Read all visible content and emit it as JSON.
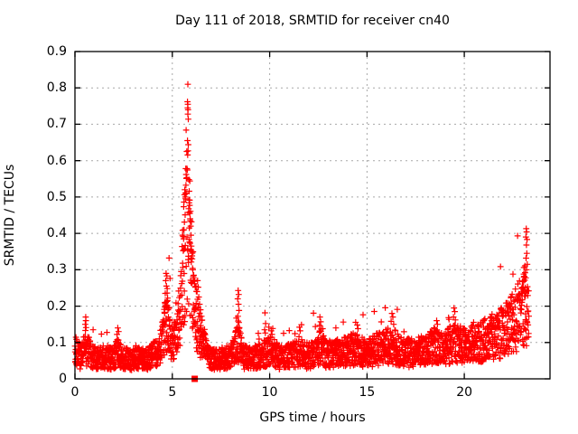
{
  "chart_data": {
    "type": "scatter",
    "title": "Day 111 of 2018, SRMTID for receiver cn40",
    "xlabel": "GPS time / hours",
    "ylabel": "SRMTID / TECUs",
    "xlim": [
      0,
      24.4
    ],
    "ylim": [
      0,
      0.9
    ],
    "xticks": [
      "0",
      "5",
      "10",
      "15",
      "20"
    ],
    "xtick_values": [
      0,
      5,
      10,
      15,
      20
    ],
    "yticks": [
      "0",
      "0.1",
      "0.2",
      "0.3",
      "0.4",
      "0.5",
      "0.6",
      "0.7",
      "0.8",
      "0.9"
    ],
    "ytick_values": [
      0,
      0.1,
      0.2,
      0.3,
      0.4,
      0.5,
      0.6,
      0.7,
      0.8,
      0.9
    ],
    "grid": true,
    "legend": "none",
    "marker": "plus",
    "marker_color": "#ff0000",
    "grid_color": "#a8a8a8",
    "border_color": "#000000",
    "background_color": "#ffffff",
    "text_color": "#000000",
    "series_sampling": {
      "t_start": 0.0,
      "t_end": 23.32,
      "dt": 0.008333,
      "seed": 1234567,
      "noise_min_factor": 0.42,
      "noise_span_factor": 1.05,
      "outlier_prob": 0.035,
      "outlier_min": 1.25,
      "outlier_span": 0.55,
      "y_floor": 0.01,
      "y_cap": 0.86
    },
    "baseline_envelope": [
      [
        0,
        0.085
      ],
      [
        0.25,
        0.062
      ],
      [
        0.5,
        0.085
      ],
      [
        0.65,
        0.08
      ],
      [
        0.9,
        0.062
      ],
      [
        1.2,
        0.058
      ],
      [
        1.6,
        0.065
      ],
      [
        1.9,
        0.06
      ],
      [
        2.2,
        0.075
      ],
      [
        2.5,
        0.06
      ],
      [
        2.9,
        0.055
      ],
      [
        3.3,
        0.06
      ],
      [
        3.7,
        0.058
      ],
      [
        4.0,
        0.068
      ],
      [
        4.3,
        0.08
      ],
      [
        4.55,
        0.12
      ],
      [
        4.7,
        0.17
      ],
      [
        4.85,
        0.13
      ],
      [
        5.0,
        0.1
      ],
      [
        5.2,
        0.11
      ],
      [
        5.45,
        0.22
      ],
      [
        5.6,
        0.34
      ],
      [
        5.75,
        0.44
      ],
      [
        5.85,
        0.42
      ],
      [
        6.0,
        0.28
      ],
      [
        6.15,
        0.19
      ],
      [
        6.35,
        0.14
      ],
      [
        6.6,
        0.1
      ],
      [
        6.9,
        0.072
      ],
      [
        7.2,
        0.055
      ],
      [
        7.6,
        0.06
      ],
      [
        8.0,
        0.065
      ],
      [
        8.4,
        0.11
      ],
      [
        8.6,
        0.065
      ],
      [
        9.0,
        0.06
      ],
      [
        9.4,
        0.065
      ],
      [
        9.75,
        0.075
      ],
      [
        10.1,
        0.08
      ],
      [
        10.5,
        0.062
      ],
      [
        10.9,
        0.065
      ],
      [
        11.2,
        0.07
      ],
      [
        11.55,
        0.082
      ],
      [
        11.9,
        0.065
      ],
      [
        12.2,
        0.07
      ],
      [
        12.6,
        0.095
      ],
      [
        12.9,
        0.07
      ],
      [
        13.2,
        0.075
      ],
      [
        13.6,
        0.08
      ],
      [
        14.0,
        0.08
      ],
      [
        14.5,
        0.09
      ],
      [
        14.8,
        0.075
      ],
      [
        15.1,
        0.075
      ],
      [
        15.5,
        0.085
      ],
      [
        15.9,
        0.09
      ],
      [
        16.2,
        0.1
      ],
      [
        16.5,
        0.09
      ],
      [
        16.8,
        0.075
      ],
      [
        17.2,
        0.075
      ],
      [
        17.6,
        0.08
      ],
      [
        18.0,
        0.085
      ],
      [
        18.5,
        0.1
      ],
      [
        18.9,
        0.085
      ],
      [
        19.3,
        0.1
      ],
      [
        19.6,
        0.105
      ],
      [
        20.0,
        0.098
      ],
      [
        20.4,
        0.1
      ],
      [
        20.8,
        0.108
      ],
      [
        21.2,
        0.115
      ],
      [
        21.6,
        0.125
      ],
      [
        22.0,
        0.135
      ],
      [
        22.4,
        0.155
      ],
      [
        22.7,
        0.175
      ],
      [
        22.95,
        0.195
      ],
      [
        23.1,
        0.215
      ],
      [
        23.3,
        0.2
      ]
    ],
    "peak_points": [
      [
        5.8,
        0.81
      ],
      [
        5.78,
        0.762
      ],
      [
        5.8,
        0.755
      ],
      [
        5.79,
        0.745
      ],
      [
        5.81,
        0.74
      ],
      [
        5.8,
        0.728
      ],
      [
        5.82,
        0.714
      ],
      [
        5.71,
        0.684
      ],
      [
        5.78,
        0.655
      ],
      [
        5.82,
        0.644
      ],
      [
        5.75,
        0.578
      ],
      [
        5.71,
        0.562
      ],
      [
        5.85,
        0.548
      ],
      [
        5.64,
        0.52
      ],
      [
        5.67,
        0.5
      ],
      [
        5.86,
        0.492
      ],
      [
        5.87,
        0.484
      ],
      [
        5.89,
        0.477
      ],
      [
        5.84,
        0.468
      ],
      [
        5.9,
        0.455
      ],
      [
        5.66,
        0.451
      ],
      [
        5.92,
        0.44
      ],
      [
        5.62,
        0.431
      ],
      [
        5.94,
        0.42
      ],
      [
        5.6,
        0.41
      ],
      [
        5.96,
        0.395
      ],
      [
        5.58,
        0.385
      ],
      [
        5.98,
        0.365
      ],
      [
        5.56,
        0.352
      ],
      [
        6.02,
        0.33
      ],
      [
        5.53,
        0.318
      ],
      [
        6.06,
        0.3
      ],
      [
        6.1,
        0.285
      ],
      [
        6.14,
        0.268
      ],
      [
        6.18,
        0.252
      ],
      [
        4.68,
        0.29
      ],
      [
        4.72,
        0.283
      ],
      [
        4.66,
        0.27
      ],
      [
        4.7,
        0.255
      ],
      [
        4.74,
        0.248
      ],
      [
        4.64,
        0.235
      ],
      [
        4.76,
        0.222
      ],
      [
        4.62,
        0.21
      ],
      [
        4.71,
        0.2
      ],
      [
        4.78,
        0.19
      ],
      [
        4.6,
        0.183
      ],
      [
        4.8,
        0.17
      ],
      [
        6.3,
        0.27
      ],
      [
        6.33,
        0.252
      ],
      [
        6.27,
        0.24
      ],
      [
        6.36,
        0.225
      ],
      [
        6.4,
        0.205
      ],
      [
        6.45,
        0.19
      ],
      [
        6.5,
        0.172
      ],
      [
        0.55,
        0.17
      ],
      [
        0.56,
        0.16
      ],
      [
        0.53,
        0.15
      ],
      [
        0.57,
        0.141
      ],
      [
        0.54,
        0.133
      ],
      [
        2.2,
        0.14
      ],
      [
        2.24,
        0.13
      ],
      [
        2.16,
        0.122
      ],
      [
        8.38,
        0.243
      ],
      [
        8.41,
        0.232
      ],
      [
        8.36,
        0.22
      ],
      [
        8.4,
        0.205
      ],
      [
        8.43,
        0.188
      ],
      [
        8.37,
        0.172
      ],
      [
        8.42,
        0.155
      ],
      [
        8.35,
        0.142
      ],
      [
        9.74,
        0.135
      ],
      [
        9.78,
        0.126
      ],
      [
        10.08,
        0.132
      ],
      [
        10.12,
        0.122
      ],
      [
        11.53,
        0.142
      ],
      [
        11.57,
        0.132
      ],
      [
        12.58,
        0.17
      ],
      [
        12.62,
        0.157
      ],
      [
        12.56,
        0.147
      ],
      [
        12.64,
        0.137
      ],
      [
        13.4,
        0.14
      ],
      [
        14.5,
        0.148
      ],
      [
        14.54,
        0.138
      ],
      [
        16.28,
        0.18
      ],
      [
        16.33,
        0.17
      ],
      [
        16.24,
        0.158
      ],
      [
        16.37,
        0.15
      ],
      [
        18.58,
        0.16
      ],
      [
        18.62,
        0.15
      ],
      [
        19.47,
        0.195
      ],
      [
        19.51,
        0.185
      ],
      [
        19.44,
        0.17
      ],
      [
        19.54,
        0.162
      ],
      [
        21.0,
        0.16
      ],
      [
        21.9,
        0.195
      ],
      [
        21.93,
        0.182
      ],
      [
        23.18,
        0.413
      ],
      [
        23.2,
        0.404
      ],
      [
        23.16,
        0.39
      ],
      [
        23.22,
        0.383
      ],
      [
        23.19,
        0.368
      ],
      [
        23.21,
        0.345
      ],
      [
        23.17,
        0.332
      ],
      [
        23.23,
        0.315
      ],
      [
        23.2,
        0.3
      ],
      [
        23.12,
        0.292
      ],
      [
        23.06,
        0.28
      ],
      [
        22.98,
        0.268
      ],
      [
        23.02,
        0.252
      ],
      [
        23.09,
        0.244
      ],
      [
        22.94,
        0.235
      ],
      [
        23.14,
        0.228
      ]
    ],
    "square_points": [
      [
        6.15,
        0
      ]
    ]
  }
}
